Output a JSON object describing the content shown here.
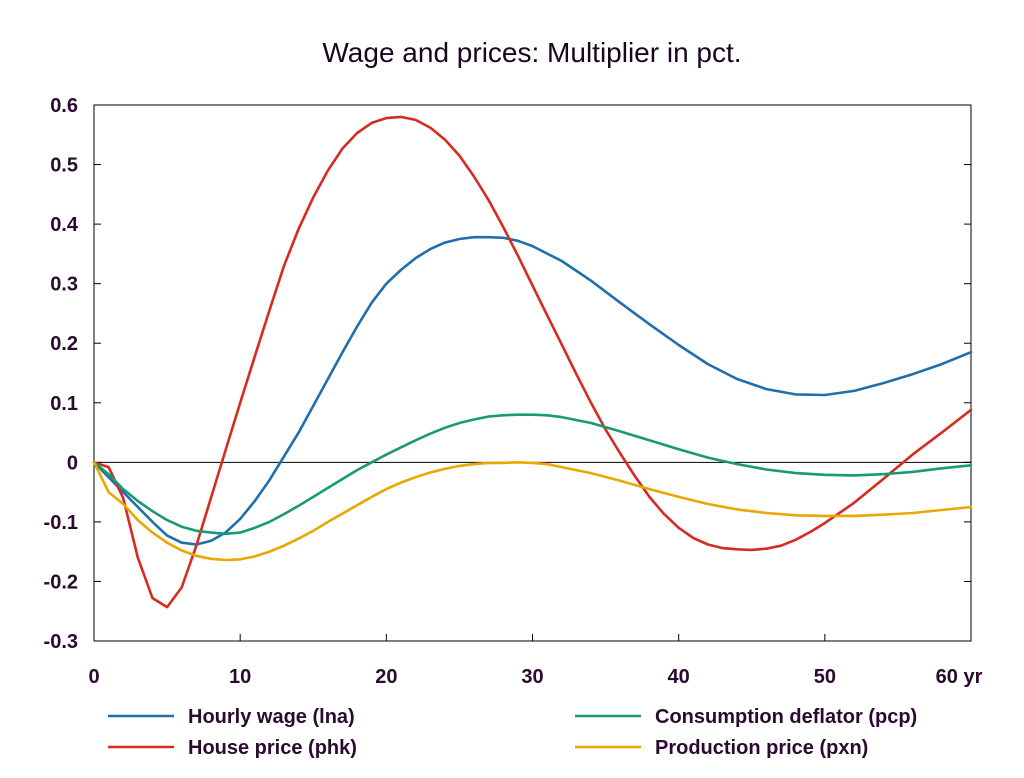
{
  "chart_data": {
    "type": "line",
    "title": "Wage and prices: Multiplier in pct.",
    "xlabel": "",
    "ylabel": "",
    "x_unit": "yr",
    "xlim": [
      0,
      60
    ],
    "ylim": [
      -0.3,
      0.6
    ],
    "x_ticks": [
      0,
      10,
      20,
      30,
      40,
      50,
      60
    ],
    "x_tick_labels": [
      "0",
      "10",
      "20",
      "30",
      "40",
      "50",
      "60 yr"
    ],
    "y_ticks": [
      -0.3,
      -0.2,
      -0.1,
      0,
      0.1,
      0.2,
      0.3,
      0.4,
      0.5,
      0.6
    ],
    "y_tick_labels": [
      "-0.3",
      "-0.2",
      "-0.1",
      "0",
      "0.1",
      "0.2",
      "0.3",
      "0.4",
      "0.5",
      "0.6"
    ],
    "legend_position": "bottom",
    "series": [
      {
        "name": "Hourly wage (lna)",
        "color": "#1f6fad",
        "points": [
          [
            0,
            0
          ],
          [
            2,
            -0.05
          ],
          [
            4,
            -0.1
          ],
          [
            5,
            -0.123
          ],
          [
            6,
            -0.135
          ],
          [
            7,
            -0.138
          ],
          [
            8,
            -0.132
          ],
          [
            9,
            -0.118
          ],
          [
            10,
            -0.095
          ],
          [
            11,
            -0.065
          ],
          [
            12,
            -0.03
          ],
          [
            13,
            0.01
          ],
          [
            14,
            0.05
          ],
          [
            15,
            0.095
          ],
          [
            16,
            0.14
          ],
          [
            17,
            0.185
          ],
          [
            18,
            0.228
          ],
          [
            19,
            0.268
          ],
          [
            20,
            0.3
          ],
          [
            21,
            0.323
          ],
          [
            22,
            0.343
          ],
          [
            23,
            0.358
          ],
          [
            24,
            0.369
          ],
          [
            25,
            0.375
          ],
          [
            26,
            0.378
          ],
          [
            27,
            0.378
          ],
          [
            28,
            0.377
          ],
          [
            29,
            0.372
          ],
          [
            30,
            0.363
          ],
          [
            32,
            0.338
          ],
          [
            34,
            0.305
          ],
          [
            36,
            0.268
          ],
          [
            38,
            0.232
          ],
          [
            40,
            0.197
          ],
          [
            42,
            0.165
          ],
          [
            44,
            0.14
          ],
          [
            46,
            0.123
          ],
          [
            48,
            0.114
          ],
          [
            50,
            0.113
          ],
          [
            52,
            0.12
          ],
          [
            54,
            0.133
          ],
          [
            56,
            0.148
          ],
          [
            58,
            0.165
          ],
          [
            60,
            0.185
          ]
        ]
      },
      {
        "name": "House price (phk)",
        "color": "#d62b1f",
        "points": [
          [
            0,
            0
          ],
          [
            1,
            -0.008
          ],
          [
            2,
            -0.06
          ],
          [
            3,
            -0.16
          ],
          [
            4,
            -0.228
          ],
          [
            5,
            -0.243
          ],
          [
            6,
            -0.21
          ],
          [
            7,
            -0.14
          ],
          [
            8,
            -0.06
          ],
          [
            9,
            0.02
          ],
          [
            10,
            0.1
          ],
          [
            11,
            0.178
          ],
          [
            12,
            0.255
          ],
          [
            13,
            0.33
          ],
          [
            14,
            0.392
          ],
          [
            15,
            0.445
          ],
          [
            16,
            0.49
          ],
          [
            17,
            0.527
          ],
          [
            18,
            0.553
          ],
          [
            19,
            0.57
          ],
          [
            20,
            0.578
          ],
          [
            21,
            0.58
          ],
          [
            22,
            0.575
          ],
          [
            23,
            0.562
          ],
          [
            24,
            0.542
          ],
          [
            25,
            0.515
          ],
          [
            26,
            0.48
          ],
          [
            27,
            0.44
          ],
          [
            28,
            0.395
          ],
          [
            29,
            0.347
          ],
          [
            30,
            0.297
          ],
          [
            31,
            0.247
          ],
          [
            32,
            0.198
          ],
          [
            33,
            0.148
          ],
          [
            34,
            0.1
          ],
          [
            35,
            0.055
          ],
          [
            36,
            0.015
          ],
          [
            37,
            -0.023
          ],
          [
            38,
            -0.058
          ],
          [
            39,
            -0.087
          ],
          [
            40,
            -0.11
          ],
          [
            41,
            -0.127
          ],
          [
            42,
            -0.138
          ],
          [
            43,
            -0.144
          ],
          [
            44,
            -0.146
          ],
          [
            45,
            -0.147
          ],
          [
            46,
            -0.145
          ],
          [
            47,
            -0.14
          ],
          [
            48,
            -0.13
          ],
          [
            49,
            -0.117
          ],
          [
            50,
            -0.102
          ],
          [
            52,
            -0.068
          ],
          [
            54,
            -0.028
          ],
          [
            56,
            0.013
          ],
          [
            58,
            0.05
          ],
          [
            60,
            0.088
          ]
        ]
      },
      {
        "name": "Consumption deflator (pcp)",
        "color": "#1a9a74",
        "points": [
          [
            0,
            0
          ],
          [
            1,
            -0.02
          ],
          [
            2,
            -0.045
          ],
          [
            3,
            -0.065
          ],
          [
            4,
            -0.082
          ],
          [
            5,
            -0.097
          ],
          [
            6,
            -0.108
          ],
          [
            7,
            -0.115
          ],
          [
            8,
            -0.118
          ],
          [
            9,
            -0.12
          ],
          [
            10,
            -0.118
          ],
          [
            11,
            -0.11
          ],
          [
            12,
            -0.1
          ],
          [
            13,
            -0.087
          ],
          [
            14,
            -0.073
          ],
          [
            15,
            -0.058
          ],
          [
            16,
            -0.043
          ],
          [
            17,
            -0.028
          ],
          [
            18,
            -0.013
          ],
          [
            19,
            0
          ],
          [
            20,
            0.013
          ],
          [
            21,
            0.025
          ],
          [
            22,
            0.037
          ],
          [
            23,
            0.048
          ],
          [
            24,
            0.058
          ],
          [
            25,
            0.066
          ],
          [
            26,
            0.072
          ],
          [
            27,
            0.077
          ],
          [
            28,
            0.079
          ],
          [
            29,
            0.08
          ],
          [
            30,
            0.08
          ],
          [
            31,
            0.079
          ],
          [
            32,
            0.076
          ],
          [
            34,
            0.066
          ],
          [
            36,
            0.052
          ],
          [
            38,
            0.037
          ],
          [
            40,
            0.022
          ],
          [
            42,
            0.008
          ],
          [
            44,
            -0.003
          ],
          [
            46,
            -0.012
          ],
          [
            48,
            -0.018
          ],
          [
            50,
            -0.021
          ],
          [
            52,
            -0.022
          ],
          [
            54,
            -0.02
          ],
          [
            56,
            -0.016
          ],
          [
            58,
            -0.01
          ],
          [
            60,
            -0.005
          ]
        ]
      },
      {
        "name": "Production price (pxn)",
        "color": "#e8a800",
        "points": [
          [
            0,
            0
          ],
          [
            1,
            -0.05
          ],
          [
            2,
            -0.07
          ],
          [
            3,
            -0.097
          ],
          [
            4,
            -0.118
          ],
          [
            5,
            -0.135
          ],
          [
            6,
            -0.148
          ],
          [
            7,
            -0.157
          ],
          [
            8,
            -0.162
          ],
          [
            9,
            -0.164
          ],
          [
            10,
            -0.163
          ],
          [
            11,
            -0.158
          ],
          [
            12,
            -0.15
          ],
          [
            13,
            -0.14
          ],
          [
            14,
            -0.128
          ],
          [
            15,
            -0.115
          ],
          [
            16,
            -0.1
          ],
          [
            17,
            -0.086
          ],
          [
            18,
            -0.072
          ],
          [
            19,
            -0.058
          ],
          [
            20,
            -0.045
          ],
          [
            21,
            -0.034
          ],
          [
            22,
            -0.025
          ],
          [
            23,
            -0.017
          ],
          [
            24,
            -0.011
          ],
          [
            25,
            -0.006
          ],
          [
            26,
            -0.003
          ],
          [
            27,
            -0.001
          ],
          [
            28,
            -0.001
          ],
          [
            29,
            0
          ],
          [
            30,
            -0.001
          ],
          [
            31,
            -0.003
          ],
          [
            32,
            -0.008
          ],
          [
            34,
            -0.018
          ],
          [
            36,
            -0.031
          ],
          [
            38,
            -0.045
          ],
          [
            40,
            -0.058
          ],
          [
            42,
            -0.07
          ],
          [
            44,
            -0.079
          ],
          [
            46,
            -0.085
          ],
          [
            48,
            -0.089
          ],
          [
            50,
            -0.09
          ],
          [
            52,
            -0.09
          ],
          [
            54,
            -0.088
          ],
          [
            56,
            -0.085
          ],
          [
            58,
            -0.08
          ],
          [
            60,
            -0.075
          ]
        ]
      }
    ]
  }
}
